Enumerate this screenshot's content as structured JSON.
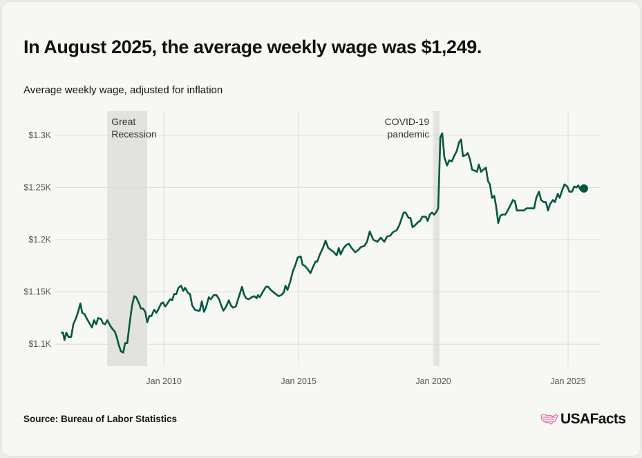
{
  "title": "In August 2025, the average weekly wage was $1,249.",
  "subtitle": "Average weekly wage, adjusted for inflation",
  "source": "Source: Bureau of Labor Statistics",
  "logo": "USAFacts",
  "colors": {
    "line": "#00573f",
    "shade": "#e2e2de",
    "grid": "#dcdcd7",
    "logo_icon": "#e8559c"
  },
  "chart_data": {
    "type": "line",
    "title": "In August 2025, the average weekly wage was $1,249.",
    "ylabel": "Average weekly wage, adjusted for inflation",
    "xlim": [
      2005.97,
      2026.18
    ],
    "ylim": [
      1079,
      1323
    ],
    "grid": true,
    "x_ticks": [
      {
        "value": 2010,
        "label": "Jan 2010"
      },
      {
        "value": 2015,
        "label": "Jan 2015"
      },
      {
        "value": 2020,
        "label": "Jan 2020"
      },
      {
        "value": 2025,
        "label": "Jan 2025"
      }
    ],
    "y_ticks": [
      {
        "value": 1100,
        "label": "$1.1K"
      },
      {
        "value": 1150,
        "label": "$1.15K"
      },
      {
        "value": 1200,
        "label": "$1.2K"
      },
      {
        "value": 1250,
        "label": "$1.25K"
      },
      {
        "value": 1300,
        "label": "$1.3K"
      }
    ],
    "annotations": [
      {
        "label_lines": [
          "Great",
          "Recession"
        ],
        "start": 2007.9,
        "end": 2009.38
      },
      {
        "label_lines": [
          "COVID-19",
          "pandemic"
        ],
        "start": 2020.03,
        "end": 2020.23
      }
    ],
    "last_point": {
      "x": 2025.59,
      "value": 1249
    },
    "series": [
      {
        "x": [
          2006.18,
          2006.26,
          2006.31,
          2006.38,
          2006.46,
          2006.56,
          2006.64,
          2006.74,
          2006.82,
          2006.9,
          2006.97,
          2007.05,
          2007.15,
          2007.26,
          2007.33,
          2007.41,
          2007.49,
          2007.56,
          2007.67,
          2007.74,
          2007.82,
          2007.9,
          2008.0,
          2008.08,
          2008.18,
          2008.26,
          2008.33,
          2008.41,
          2008.49,
          2008.56,
          2008.64,
          2008.74,
          2008.82,
          2008.9,
          2008.97,
          2009.08,
          2009.15,
          2009.23,
          2009.31,
          2009.38,
          2009.46,
          2009.54,
          2009.64,
          2009.72,
          2009.79,
          2009.9,
          2009.97,
          2010.05,
          2010.13,
          2010.23,
          2010.31,
          2010.38,
          2010.46,
          2010.54,
          2010.64,
          2010.72,
          2010.79,
          2010.9,
          2010.97,
          2011.05,
          2011.15,
          2011.26,
          2011.33,
          2011.41,
          2011.49,
          2011.56,
          2011.67,
          2011.74,
          2011.85,
          2011.95,
          2012.05,
          2012.13,
          2012.21,
          2012.31,
          2012.41,
          2012.49,
          2012.56,
          2012.67,
          2012.79,
          2012.9,
          2012.97,
          2013.05,
          2013.15,
          2013.26,
          2013.36,
          2013.44,
          2013.49,
          2013.56,
          2013.67,
          2013.79,
          2013.87,
          2013.97,
          2014.1,
          2014.26,
          2014.36,
          2014.46,
          2014.51,
          2014.59,
          2014.69,
          2014.79,
          2014.87,
          2014.97,
          2015.08,
          2015.15,
          2015.23,
          2015.33,
          2015.44,
          2015.54,
          2015.62,
          2015.69,
          2015.79,
          2015.9,
          2016.0,
          2016.1,
          2016.21,
          2016.31,
          2016.41,
          2016.49,
          2016.56,
          2016.67,
          2016.77,
          2016.87,
          2016.97,
          2017.1,
          2017.21,
          2017.31,
          2017.44,
          2017.54,
          2017.64,
          2017.77,
          2017.92,
          2018.05,
          2018.18,
          2018.28,
          2018.41,
          2018.49,
          2018.64,
          2018.74,
          2018.9,
          2018.97,
          2019.08,
          2019.15,
          2019.23,
          2019.33,
          2019.44,
          2019.51,
          2019.59,
          2019.72,
          2019.79,
          2019.87,
          2019.95,
          2020.03,
          2020.1,
          2020.18,
          2020.26,
          2020.33,
          2020.41,
          2020.51,
          2020.59,
          2020.69,
          2020.77,
          2020.87,
          2020.95,
          2021.03,
          2021.1,
          2021.21,
          2021.28,
          2021.36,
          2021.44,
          2021.54,
          2021.62,
          2021.69,
          2021.77,
          2021.85,
          2021.95,
          2022.03,
          2022.1,
          2022.18,
          2022.26,
          2022.33,
          2022.41,
          2022.49,
          2022.56,
          2022.67,
          2022.74,
          2022.82,
          2022.9,
          2022.95,
          2023.03,
          2023.1,
          2023.21,
          2023.28,
          2023.36,
          2023.46,
          2023.54,
          2023.64,
          2023.74,
          2023.82,
          2023.92,
          2024.0,
          2024.1,
          2024.18,
          2024.26,
          2024.33,
          2024.44,
          2024.51,
          2024.62,
          2024.69,
          2024.79,
          2024.87,
          2024.97,
          2025.05,
          2025.15,
          2025.23,
          2025.31,
          2025.38,
          2025.46,
          2025.59
        ],
        "values": [
          1111,
          1111,
          1104,
          1111,
          1107,
          1107,
          1119,
          1125,
          1131,
          1139,
          1130,
          1129,
          1124,
          1119,
          1116,
          1123,
          1119,
          1125,
          1124,
          1120,
          1119,
          1123,
          1118,
          1115,
          1112,
          1106,
          1099,
          1093,
          1092,
          1101,
          1101,
          1122,
          1137,
          1146,
          1145,
          1139,
          1134,
          1134,
          1131,
          1121,
          1127,
          1127,
          1133,
          1130,
          1133,
          1139,
          1140,
          1136,
          1139,
          1143,
          1142,
          1148,
          1148,
          1154,
          1156,
          1151,
          1154,
          1149,
          1148,
          1137,
          1133,
          1132,
          1132,
          1141,
          1131,
          1135,
          1145,
          1143,
          1147,
          1147,
          1143,
          1137,
          1132,
          1136,
          1142,
          1137,
          1135,
          1136,
          1146,
          1155,
          1148,
          1144,
          1143,
          1145,
          1146,
          1144,
          1147,
          1145,
          1150,
          1155,
          1155,
          1152,
          1149,
          1146,
          1147,
          1150,
          1156,
          1152,
          1160,
          1170,
          1175,
          1183,
          1184,
          1176,
          1175,
          1172,
          1168,
          1174,
          1179,
          1179,
          1186,
          1192,
          1199,
          1192,
          1190,
          1188,
          1185,
          1192,
          1186,
          1192,
          1195,
          1196,
          1192,
          1188,
          1190,
          1193,
          1194,
          1198,
          1208,
          1200,
          1198,
          1202,
          1198,
          1203,
          1204,
          1207,
          1209,
          1214,
          1226,
          1226,
          1221,
          1221,
          1212,
          1214,
          1217,
          1218,
          1222,
          1222,
          1218,
          1224,
          1226,
          1224,
          1226,
          1230,
          1298,
          1302,
          1279,
          1271,
          1276,
          1275,
          1280,
          1285,
          1293,
          1296,
          1280,
          1281,
          1283,
          1277,
          1267,
          1266,
          1265,
          1272,
          1265,
          1267,
          1269,
          1256,
          1253,
          1240,
          1242,
          1232,
          1216,
          1223,
          1224,
          1224,
          1227,
          1231,
          1235,
          1238,
          1237,
          1228,
          1228,
          1228,
          1228,
          1230,
          1230,
          1230,
          1230,
          1240,
          1246,
          1238,
          1236,
          1236,
          1228,
          1234,
          1238,
          1236,
          1244,
          1240,
          1248,
          1253,
          1251,
          1246,
          1246,
          1251,
          1250,
          1252,
          1248,
          1249
        ]
      }
    ]
  }
}
